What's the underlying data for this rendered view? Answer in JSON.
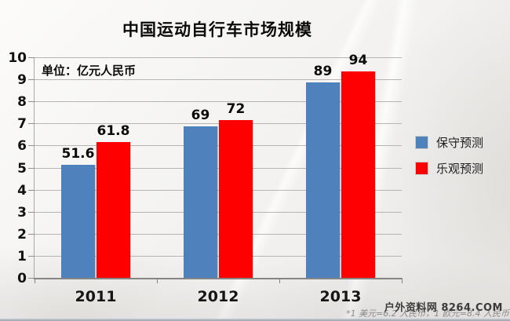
{
  "chart_data": {
    "type": "bar",
    "title": "中国运动自行车市场规模",
    "unit_label": "单位：亿元人民币",
    "categories": [
      "2011",
      "2012",
      "2013"
    ],
    "series": [
      {
        "name": "保守预测",
        "color": "#4f81bd",
        "values": [
          51.6,
          69,
          89
        ],
        "bar_heights_axis_units": [
          5.16,
          6.9,
          8.9
        ]
      },
      {
        "name": "乐观预测",
        "color": "#fe0000",
        "values": [
          61.8,
          72,
          94
        ],
        "bar_heights_axis_units": [
          6.18,
          7.2,
          9.4
        ]
      }
    ],
    "ylim": [
      0,
      10
    ],
    "y_tick_step": 1,
    "value_to_axis_divisor": 10,
    "grid": true,
    "legend_position": "right"
  },
  "footnote": {
    "text": "*1 美元=6.2 人民币，1 欧元=8.4 人民币"
  },
  "watermark": {
    "text": "户外资料网 8264.COM"
  }
}
